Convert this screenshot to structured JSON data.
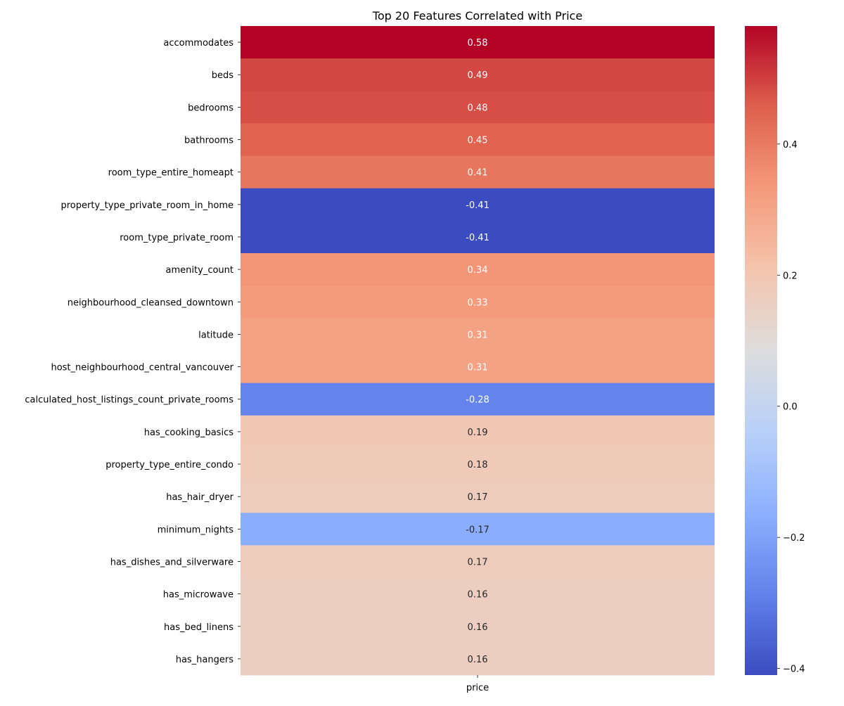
{
  "chart_data": {
    "type": "heatmap",
    "title": "Top 20 Features Correlated with Price",
    "column_labels": [
      "price"
    ],
    "row_labels": [
      "accommodates",
      "beds",
      "bedrooms",
      "bathrooms",
      "room_type_entire_homeapt",
      "property_type_private_room_in_home",
      "room_type_private_room",
      "amenity_count",
      "neighbourhood_cleansed_downtown",
      "latitude",
      "host_neighbourhood_central_vancouver",
      "calculated_host_listings_count_private_rooms",
      "has_cooking_basics",
      "property_type_entire_condo",
      "has_hair_dryer",
      "minimum_nights",
      "has_dishes_and_silverware",
      "has_microwave",
      "has_bed_linens",
      "has_hangers"
    ],
    "values": [
      0.58,
      0.49,
      0.48,
      0.45,
      0.41,
      -0.41,
      -0.41,
      0.34,
      0.33,
      0.31,
      0.31,
      -0.28,
      0.19,
      0.18,
      0.17,
      -0.17,
      0.17,
      0.16,
      0.16,
      0.16
    ],
    "cell_labels": [
      "0.58",
      "0.49",
      "0.48",
      "0.45",
      "0.41",
      "-0.41",
      "-0.41",
      "0.34",
      "0.33",
      "0.31",
      "0.31",
      "-0.28",
      "0.19",
      "0.18",
      "0.17",
      "-0.17",
      "0.17",
      "0.16",
      "0.16",
      "0.16"
    ],
    "colormap": "coolwarm",
    "vmin": -0.41,
    "vmax": 0.58,
    "colorbar": {
      "ticks": [
        -0.4,
        -0.2,
        0.0,
        0.2,
        0.4
      ],
      "tick_labels": [
        "−0.4",
        "−0.2",
        "0.0",
        "0.2",
        "0.4"
      ]
    }
  }
}
